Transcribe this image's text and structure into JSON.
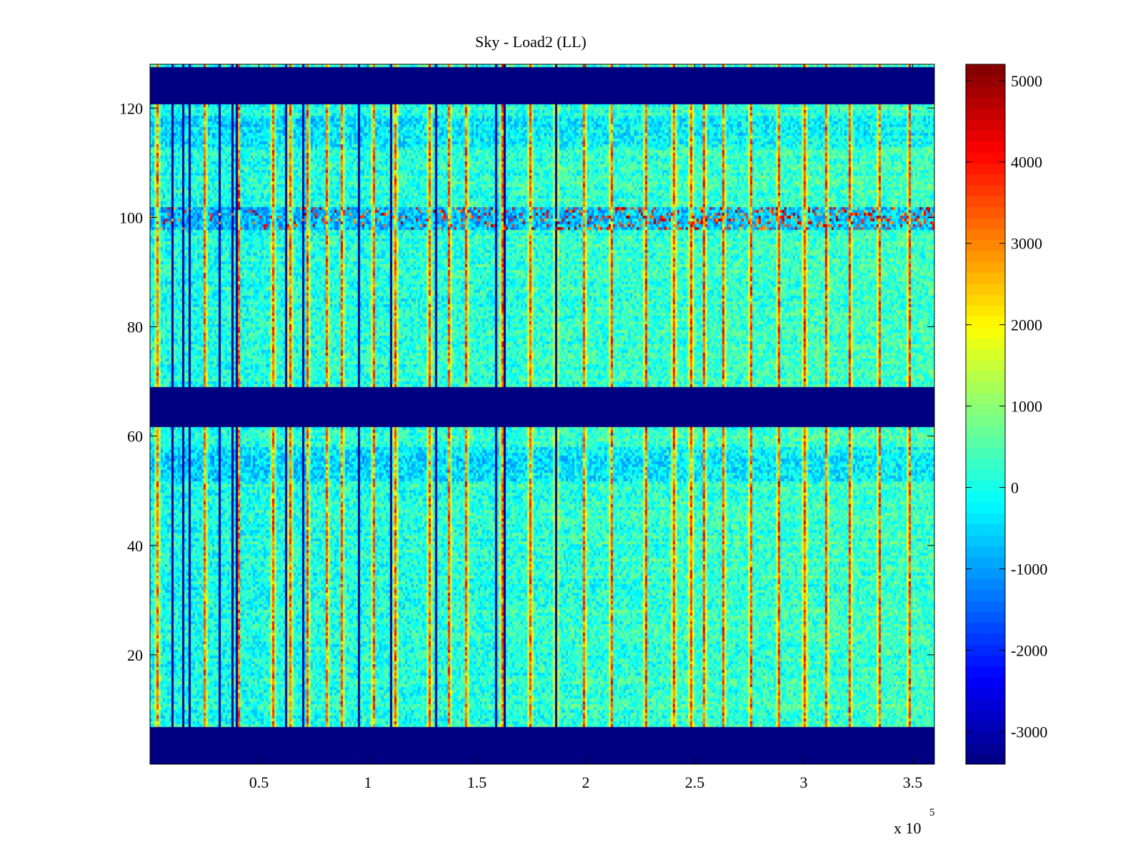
{
  "chart_data": {
    "type": "heatmap",
    "title": "Sky - Load2 (LL)",
    "xlabel": "",
    "ylabel": "",
    "x_multiplier_base": "x 10",
    "x_multiplier_exponent": "5",
    "xlim": [
      0,
      360000
    ],
    "ylim": [
      0,
      128
    ],
    "x_ticks": [
      {
        "value": 50000,
        "label": "0.5"
      },
      {
        "value": 100000,
        "label": "1"
      },
      {
        "value": 150000,
        "label": "1.5"
      },
      {
        "value": 200000,
        "label": "2"
      },
      {
        "value": 250000,
        "label": "2.5"
      },
      {
        "value": 300000,
        "label": "3"
      },
      {
        "value": 350000,
        "label": "3.5"
      }
    ],
    "y_ticks": [
      {
        "value": 20,
        "label": "20"
      },
      {
        "value": 40,
        "label": "40"
      },
      {
        "value": 60,
        "label": "60"
      },
      {
        "value": 80,
        "label": "80"
      },
      {
        "value": 100,
        "label": "100"
      },
      {
        "value": 120,
        "label": "120"
      }
    ],
    "colorbar": {
      "colormap": "jet",
      "range": [
        -3400,
        5200
      ],
      "ticks": [
        {
          "value": 5000,
          "label": "5000"
        },
        {
          "value": 4000,
          "label": "4000"
        },
        {
          "value": 3000,
          "label": "3000"
        },
        {
          "value": 2000,
          "label": "2000"
        },
        {
          "value": 1000,
          "label": "1000"
        },
        {
          "value": 0,
          "label": "0"
        },
        {
          "value": -1000,
          "label": "-1000"
        },
        {
          "value": -2000,
          "label": "-2000"
        },
        {
          "value": -3000,
          "label": "-3000"
        }
      ]
    },
    "masked_rows": [
      {
        "from": 0,
        "to": 7,
        "value": -3400
      },
      {
        "from": 62,
        "to": 69,
        "value": -3400
      },
      {
        "from": 121,
        "to": 128,
        "value": -3400
      }
    ],
    "background_value": 0,
    "background_spread": 700,
    "hot_stripes_x": [
      3000,
      25000,
      40000,
      56000,
      64000,
      72000,
      81000,
      88000,
      102000,
      112000,
      128000,
      137000,
      145000,
      161000,
      174000,
      186000,
      199000,
      211000,
      227000,
      240000,
      248000,
      254000,
      263000,
      275000,
      288000,
      300000,
      310000,
      321000,
      334000,
      348000
    ],
    "cold_stripes_x": [
      10000,
      15000,
      18000,
      31000,
      37000,
      39000,
      62000,
      70000,
      95000,
      110000,
      131000,
      158000,
      162000,
      186000
    ],
    "hot_row_value": 2500,
    "hot_row_band": [
      98,
      102
    ],
    "cool_row_bands": [
      [
        113,
        119
      ],
      [
        52,
        58
      ]
    ],
    "palette": {
      "axis": "#000000",
      "background": "#ffffff",
      "masked": "#00008f"
    }
  }
}
